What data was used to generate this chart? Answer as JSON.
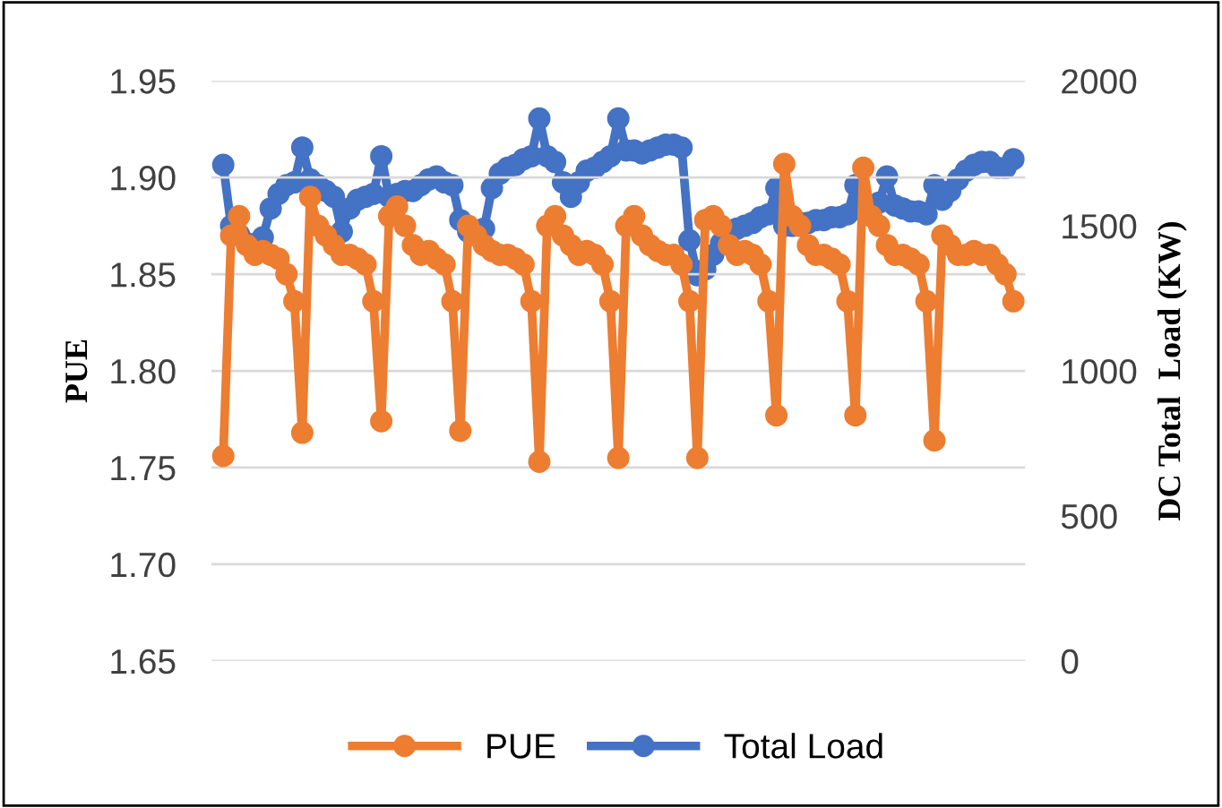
{
  "chart_data": {
    "type": "line",
    "categories": [
      null,
      null,
      null,
      null,
      null,
      null,
      null,
      null,
      null,
      null,
      null,
      null,
      null,
      null,
      null,
      null,
      null,
      null,
      null,
      null,
      null,
      null,
      null,
      null,
      null,
      null,
      null,
      null,
      null,
      null,
      null,
      null,
      null,
      null,
      null,
      null,
      null,
      null,
      null,
      null,
      null,
      null,
      null,
      null,
      null,
      null,
      null,
      null,
      null,
      null,
      null,
      null,
      null,
      null,
      null,
      null,
      null,
      null,
      null,
      null,
      null,
      null,
      null,
      null,
      null,
      null,
      null,
      null,
      null,
      null,
      null,
      null,
      null,
      null,
      null,
      null,
      null,
      null,
      null,
      null,
      null,
      null,
      null,
      null,
      null,
      null,
      null,
      null,
      null,
      null,
      null,
      null,
      null,
      null,
      null,
      null,
      null,
      null,
      null,
      null,
      null
    ],
    "series": [
      {
        "name": "PUE",
        "color": "#ed7d31",
        "values": [
          1.756,
          1.87,
          1.88,
          1.865,
          1.86,
          1.862,
          1.86,
          1.858,
          1.85,
          1.836,
          1.768,
          1.89,
          1.875,
          1.87,
          1.865,
          1.86,
          1.86,
          1.858,
          1.855,
          1.836,
          1.774,
          1.88,
          1.885,
          1.875,
          1.865,
          1.86,
          1.862,
          1.858,
          1.855,
          1.836,
          1.769,
          1.875,
          1.87,
          1.865,
          1.862,
          1.86,
          1.86,
          1.858,
          1.855,
          1.836,
          1.753,
          1.875,
          1.88,
          1.87,
          1.865,
          1.86,
          1.862,
          1.86,
          1.855,
          1.836,
          1.755,
          1.875,
          1.88,
          1.87,
          1.865,
          1.862,
          1.86,
          1.86,
          1.855,
          1.836,
          1.755,
          1.878,
          1.88,
          1.875,
          1.865,
          1.86,
          1.862,
          1.86,
          1.855,
          1.836,
          1.777,
          1.907,
          1.88,
          1.875,
          1.865,
          1.86,
          1.86,
          1.858,
          1.855,
          1.836,
          1.777,
          1.905,
          1.88,
          1.875,
          1.865,
          1.86,
          1.86,
          1.858,
          1.855,
          1.836,
          1.764,
          1.87,
          1.865,
          1.86,
          1.86,
          1.862,
          1.86,
          1.86,
          1.855,
          1.85,
          1.836
        ]
      },
      {
        "name": "Total Load",
        "color": "#4472c4",
        "axis": "y2",
        "values": [
          1710,
          1500,
          1470,
          1440,
          1430,
          1460,
          1560,
          1610,
          1640,
          1650,
          1770,
          1660,
          1640,
          1620,
          1600,
          1480,
          1560,
          1590,
          1600,
          1610,
          1740,
          1600,
          1610,
          1620,
          1620,
          1640,
          1660,
          1670,
          1650,
          1640,
          1520,
          1480,
          1470,
          1490,
          1630,
          1680,
          1700,
          1710,
          1730,
          1740,
          1870,
          1740,
          1720,
          1650,
          1600,
          1650,
          1690,
          1700,
          1720,
          1740,
          1870,
          1760,
          1760,
          1750,
          1760,
          1770,
          1780,
          1780,
          1770,
          1450,
          1330,
          1350,
          1400,
          1440,
          1470,
          1490,
          1500,
          1510,
          1530,
          1540,
          1630,
          1500,
          1500,
          1510,
          1510,
          1520,
          1520,
          1530,
          1530,
          1540,
          1640,
          1560,
          1560,
          1580,
          1670,
          1570,
          1560,
          1550,
          1550,
          1540,
          1640,
          1590,
          1620,
          1660,
          1690,
          1710,
          1720,
          1720,
          1700,
          1700,
          1730
        ]
      }
    ],
    "ylabel": "PUE",
    "y2label": "DC Total  Load (KW)",
    "ylim": [
      1.65,
      1.95
    ],
    "yticks": [
      {
        "value": 1.65,
        "label": "1.65"
      },
      {
        "value": 1.7,
        "label": "1.70"
      },
      {
        "value": 1.75,
        "label": "1.75"
      },
      {
        "value": 1.8,
        "label": "1.80"
      },
      {
        "value": 1.85,
        "label": "1.85"
      },
      {
        "value": 1.9,
        "label": "1.90"
      },
      {
        "value": 1.95,
        "label": "1.95"
      }
    ],
    "y2lim": [
      0,
      2000
    ],
    "y2ticks": [
      0,
      500,
      1000,
      1500,
      2000
    ],
    "grid": "y",
    "legend": "bottom",
    "marker": "circle",
    "line_style": "solid"
  }
}
